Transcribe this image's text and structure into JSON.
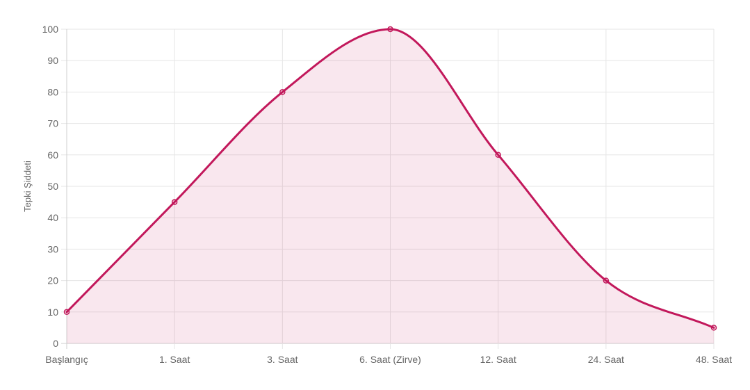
{
  "chart_data": {
    "type": "line",
    "categories": [
      "Başlangıç",
      "1. Saat",
      "3. Saat",
      "6. Saat (Zirve)",
      "12. Saat",
      "24. Saat",
      "48. Saat"
    ],
    "series": [
      {
        "values": [
          10,
          45,
          80,
          100,
          60,
          20,
          5
        ],
        "color": "#c2185b",
        "fill": "rgba(194,24,91,0.1)"
      }
    ],
    "ylabel": "Tepki Şiddeti",
    "xlabel": "",
    "ylim": [
      0,
      100
    ],
    "yticks": [
      0,
      10,
      20,
      30,
      40,
      50,
      60,
      70,
      80,
      90,
      100
    ],
    "grid": true,
    "smooth": true,
    "area_fill": true
  }
}
